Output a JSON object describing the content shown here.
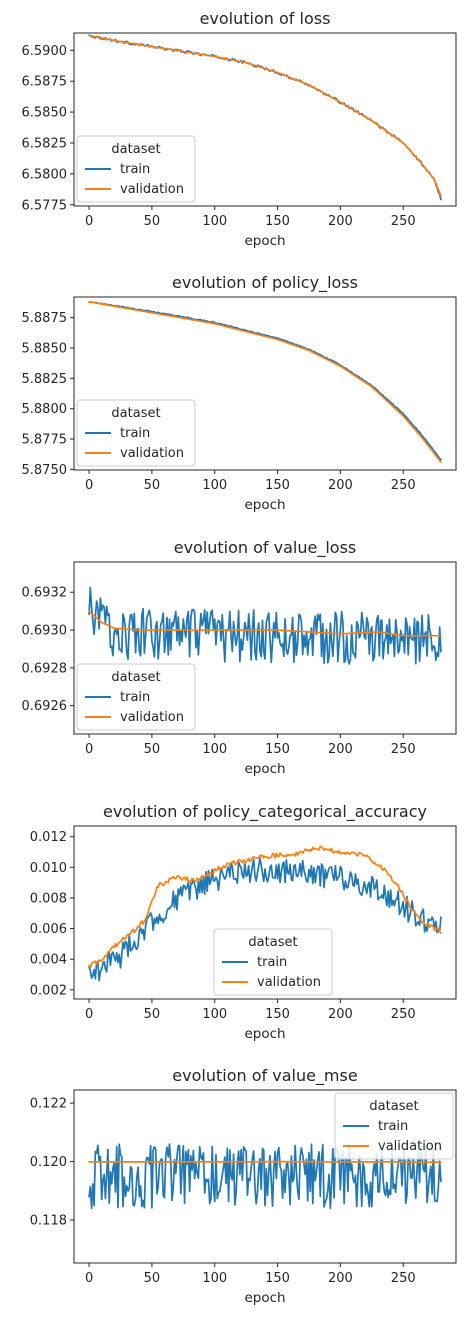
{
  "colors": {
    "train": "#1f77b4",
    "validation": "#ff7f0e",
    "axis": "#262626"
  },
  "chart_data": [
    {
      "type": "line",
      "title": "evolution of loss",
      "xlabel": "epoch",
      "ylabel": "",
      "xlim": [
        -12,
        292
      ],
      "ylim": [
        6.5774,
        6.5914
      ],
      "xticks": [
        0,
        50,
        100,
        150,
        200,
        250
      ],
      "yticks": [
        6.5775,
        6.58,
        6.5825,
        6.585,
        6.5875,
        6.59
      ],
      "ytick_labels": [
        "6.5775",
        "6.5800",
        "6.5825",
        "6.5850",
        "6.5875",
        "6.5900"
      ],
      "legend": {
        "title": "dataset",
        "position": "lower-left",
        "entries": [
          "train",
          "validation"
        ]
      },
      "series": [
        {
          "name": "train",
          "color": "#1f77b4",
          "noise": 0.0001,
          "points": [
            [
              0,
              6.5912
            ],
            [
              25,
              6.5907
            ],
            [
              50,
              6.5903
            ],
            [
              75,
              6.5899
            ],
            [
              100,
              6.5895
            ],
            [
              125,
              6.589
            ],
            [
              150,
              6.5882
            ],
            [
              175,
              6.5872
            ],
            [
              200,
              6.5858
            ],
            [
              225,
              6.5843
            ],
            [
              250,
              6.5825
            ],
            [
              265,
              6.5808
            ],
            [
              275,
              6.5795
            ],
            [
              280,
              6.578
            ]
          ]
        },
        {
          "name": "validation",
          "color": "#ff7f0e",
          "noise": 0,
          "points": [
            [
              0,
              6.5912
            ],
            [
              25,
              6.5907
            ],
            [
              50,
              6.5903
            ],
            [
              75,
              6.5899
            ],
            [
              100,
              6.5895
            ],
            [
              125,
              6.589
            ],
            [
              150,
              6.5882
            ],
            [
              175,
              6.5872
            ],
            [
              200,
              6.5858
            ],
            [
              225,
              6.5843
            ],
            [
              250,
              6.5825
            ],
            [
              265,
              6.5808
            ],
            [
              275,
              6.5795
            ],
            [
              280,
              6.5782
            ]
          ]
        }
      ]
    },
    {
      "type": "line",
      "title": "evolution of policy_loss",
      "xlabel": "epoch",
      "ylabel": "",
      "xlim": [
        -12,
        292
      ],
      "ylim": [
        5.87495,
        5.8892
      ],
      "xticks": [
        0,
        50,
        100,
        150,
        200,
        250
      ],
      "yticks": [
        5.875,
        5.8775,
        5.88,
        5.8825,
        5.885,
        5.8875
      ],
      "ytick_labels": [
        "5.8750",
        "5.8775",
        "5.8800",
        "5.8825",
        "5.8850",
        "5.8875"
      ],
      "legend": {
        "title": "dataset",
        "position": "lower-left",
        "entries": [
          "train",
          "validation"
        ]
      },
      "series": [
        {
          "name": "train",
          "color": "#1f77b4",
          "noise": 4e-05,
          "points": [
            [
              0,
              5.8888
            ],
            [
              50,
              5.888
            ],
            [
              100,
              5.8871
            ],
            [
              150,
              5.8858
            ],
            [
              175,
              5.8849
            ],
            [
              200,
              5.8836
            ],
            [
              225,
              5.8819
            ],
            [
              250,
              5.8796
            ],
            [
              265,
              5.8778
            ],
            [
              280,
              5.8758
            ]
          ]
        },
        {
          "name": "validation",
          "color": "#ff7f0e",
          "noise": 0,
          "points": [
            [
              0,
              5.8888
            ],
            [
              50,
              5.8879
            ],
            [
              100,
              5.887
            ],
            [
              150,
              5.8857
            ],
            [
              175,
              5.8848
            ],
            [
              200,
              5.8835
            ],
            [
              225,
              5.8818
            ],
            [
              250,
              5.8794
            ],
            [
              265,
              5.8776
            ],
            [
              280,
              5.8756
            ]
          ]
        }
      ]
    },
    {
      "type": "line",
      "title": "evolution of value_loss",
      "xlabel": "epoch",
      "ylabel": "",
      "xlim": [
        -12,
        292
      ],
      "ylim": [
        0.69245,
        0.69336
      ],
      "xticks": [
        0,
        50,
        100,
        150,
        200,
        250
      ],
      "yticks": [
        0.6926,
        0.6928,
        0.693,
        0.6932
      ],
      "ytick_labels": [
        "0.6926",
        "0.6928",
        "0.6930",
        "0.6932"
      ],
      "legend": {
        "title": "dataset",
        "position": "lower-left",
        "entries": [
          "train",
          "validation"
        ]
      },
      "series": [
        {
          "name": "train",
          "color": "#1f77b4",
          "noise": 0.00014,
          "points": [
            [
              0,
              0.69311
            ],
            [
              10,
              0.69305
            ],
            [
              20,
              0.69298
            ],
            [
              280,
              0.69295
            ]
          ]
        },
        {
          "name": "validation",
          "color": "#ff7f0e",
          "noise": 0,
          "points": [
            [
              0,
              0.6931
            ],
            [
              10,
              0.69304
            ],
            [
              20,
              0.69301
            ],
            [
              40,
              0.693
            ],
            [
              100,
              0.693
            ],
            [
              150,
              0.693
            ],
            [
              200,
              0.69298
            ],
            [
              230,
              0.69299
            ],
            [
              250,
              0.69297
            ],
            [
              280,
              0.69297
            ]
          ]
        }
      ]
    },
    {
      "type": "line",
      "title": "evolution of policy_categorical_accuracy",
      "xlabel": "epoch",
      "ylabel": "",
      "xlim": [
        -12,
        292
      ],
      "ylim": [
        0.0014,
        0.0127
      ],
      "xticks": [
        0,
        50,
        100,
        150,
        200,
        250
      ],
      "yticks": [
        0.002,
        0.004,
        0.006,
        0.008,
        0.01,
        0.012
      ],
      "ytick_labels": [
        "0.002",
        "0.004",
        "0.006",
        "0.008",
        "0.010",
        "0.012"
      ],
      "legend": {
        "title": "dataset",
        "position": "lower-center",
        "entries": [
          "train",
          "validation"
        ]
      },
      "series": [
        {
          "name": "train",
          "color": "#1f77b4",
          "noise": 0.0008,
          "points": [
            [
              0,
              0.003
            ],
            [
              25,
              0.0042
            ],
            [
              50,
              0.0065
            ],
            [
              75,
              0.0082
            ],
            [
              100,
              0.0092
            ],
            [
              125,
              0.0098
            ],
            [
              150,
              0.0098
            ],
            [
              175,
              0.0096
            ],
            [
              200,
              0.0093
            ],
            [
              225,
              0.0088
            ],
            [
              250,
              0.0075
            ],
            [
              265,
              0.0065
            ],
            [
              280,
              0.0062
            ]
          ]
        },
        {
          "name": "validation",
          "color": "#ff7f0e",
          "noise": 0.00015,
          "points": [
            [
              0,
              0.0035
            ],
            [
              10,
              0.004
            ],
            [
              20,
              0.0048
            ],
            [
              35,
              0.0058
            ],
            [
              45,
              0.0066
            ],
            [
              55,
              0.0088
            ],
            [
              70,
              0.0094
            ],
            [
              85,
              0.0091
            ],
            [
              100,
              0.0098
            ],
            [
              115,
              0.0103
            ],
            [
              140,
              0.0107
            ],
            [
              165,
              0.0109
            ],
            [
              180,
              0.0113
            ],
            [
              200,
              0.011
            ],
            [
              220,
              0.0108
            ],
            [
              235,
              0.0098
            ],
            [
              245,
              0.0089
            ],
            [
              255,
              0.0075
            ],
            [
              265,
              0.0064
            ],
            [
              280,
              0.0058
            ]
          ]
        }
      ]
    },
    {
      "type": "line",
      "title": "evolution of value_mse",
      "xlabel": "epoch",
      "ylabel": "",
      "xlim": [
        -12,
        292
      ],
      "ylim": [
        0.11653,
        0.12245
      ],
      "xticks": [
        0,
        50,
        100,
        150,
        200,
        250
      ],
      "yticks": [
        0.118,
        0.12,
        0.122
      ],
      "ytick_labels": [
        "0.118",
        "0.120",
        "0.122"
      ],
      "legend": {
        "title": "dataset",
        "position": "upper-right",
        "entries": [
          "train",
          "validation"
        ]
      },
      "series": [
        {
          "name": "train",
          "color": "#1f77b4",
          "noise": 0.0011,
          "points": [
            [
              0,
              0.1195
            ],
            [
              280,
              0.1195
            ]
          ]
        },
        {
          "name": "validation",
          "color": "#ff7f0e",
          "noise": 0,
          "points": [
            [
              0,
              0.11999
            ],
            [
              100,
              0.11999
            ],
            [
              150,
              0.12
            ],
            [
              200,
              0.11999
            ],
            [
              250,
              0.11999
            ],
            [
              280,
              0.11998
            ]
          ]
        }
      ]
    }
  ]
}
